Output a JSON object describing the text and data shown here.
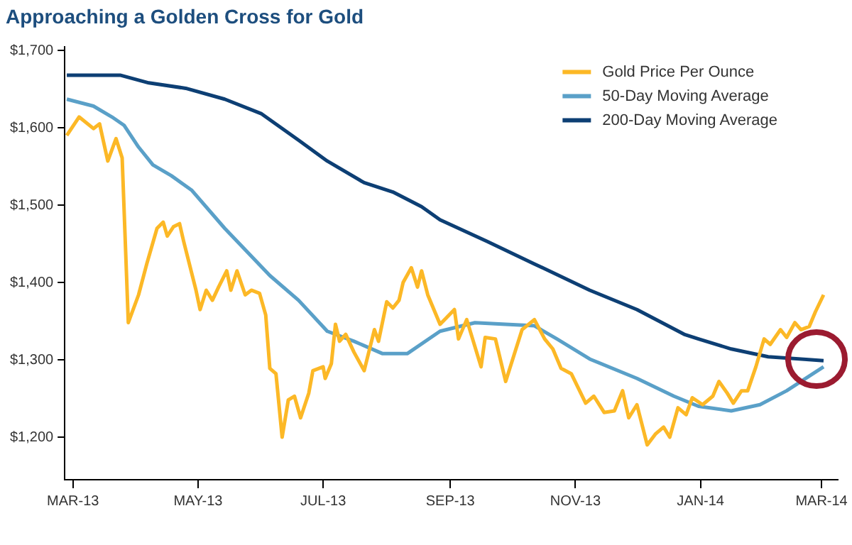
{
  "chart_data": {
    "type": "line",
    "title": "Approaching a Golden Cross for Gold",
    "xlim": [
      "2013-02-25",
      "2014-03-09"
    ],
    "xticks": [
      {
        "value": "2013-03-01",
        "label": "MAR-13"
      },
      {
        "value": "2013-05-01",
        "label": "MAY-13"
      },
      {
        "value": "2013-07-01",
        "label": "JUL-13"
      },
      {
        "value": "2013-09-01",
        "label": "SEP-13"
      },
      {
        "value": "2013-11-01",
        "label": "NOV-13"
      },
      {
        "value": "2014-01-01",
        "label": "JAN-14"
      },
      {
        "value": "2014-03-01",
        "label": "MAR-14"
      }
    ],
    "ylim": [
      1145,
      1705
    ],
    "yticks": [
      {
        "value": 1200,
        "label": "$1,200"
      },
      {
        "value": 1300,
        "label": "$1,300"
      },
      {
        "value": 1400,
        "label": "$1,400"
      },
      {
        "value": 1500,
        "label": "$1,500"
      },
      {
        "value": 1600,
        "label": "$1,600"
      },
      {
        "value": 1700,
        "label": "$1,700"
      }
    ],
    "legend": "top right",
    "series": [
      {
        "name": "Gold Price Per Ounce",
        "color": "#fcb826",
        "x": [
          "2013-02-26",
          "2013-03-04",
          "2013-03-11",
          "2013-03-14",
          "2013-03-18",
          "2013-03-22",
          "2013-03-25",
          "2013-03-28",
          "2013-04-02",
          "2013-04-06",
          "2013-04-11",
          "2013-04-14",
          "2013-04-16",
          "2013-04-19",
          "2013-04-22",
          "2013-04-24",
          "2013-04-26",
          "2013-04-30",
          "2013-05-02",
          "2013-05-05",
          "2013-05-08",
          "2013-05-11",
          "2013-05-15",
          "2013-05-17",
          "2013-05-20",
          "2013-05-24",
          "2013-05-27",
          "2013-05-31",
          "2013-06-03",
          "2013-06-05",
          "2013-06-08",
          "2013-06-11",
          "2013-06-14",
          "2013-06-17",
          "2013-06-20",
          "2013-06-24",
          "2013-06-26",
          "2013-07-01",
          "2013-07-02",
          "2013-07-05",
          "2013-07-07",
          "2013-07-09",
          "2013-07-12",
          "2013-07-16",
          "2013-07-21",
          "2013-07-26",
          "2013-07-28",
          "2013-08-01",
          "2013-08-04",
          "2013-08-07",
          "2013-08-09",
          "2013-08-13",
          "2013-08-16",
          "2013-08-18",
          "2013-08-21",
          "2013-08-27",
          "2013-09-03",
          "2013-09-05",
          "2013-09-09",
          "2013-09-16",
          "2013-09-18",
          "2013-09-23",
          "2013-09-28",
          "2013-10-03",
          "2013-10-06",
          "2013-10-12",
          "2013-10-17",
          "2013-10-21",
          "2013-10-25",
          "2013-10-30",
          "2013-11-06",
          "2013-11-10",
          "2013-11-15",
          "2013-11-20",
          "2013-11-24",
          "2013-11-27",
          "2013-12-01",
          "2013-12-06",
          "2013-12-10",
          "2013-12-14",
          "2013-12-17",
          "2013-12-21",
          "2013-12-25",
          "2013-12-28",
          "2014-01-02",
          "2014-01-07",
          "2014-01-10",
          "2014-01-14",
          "2014-01-17",
          "2014-01-21",
          "2014-01-24",
          "2014-01-28",
          "2014-02-01",
          "2014-02-04",
          "2014-02-09",
          "2014-02-12",
          "2014-02-16",
          "2014-02-19",
          "2014-02-23",
          "2014-02-26",
          "2014-03-02"
        ],
        "values": [
          1590,
          1614,
          1599,
          1605,
          1557,
          1586,
          1561,
          1348,
          1384,
          1424,
          1470,
          1478,
          1460,
          1472,
          1476,
          1453,
          1432,
          1390,
          1365,
          1390,
          1377,
          1394,
          1415,
          1390,
          1415,
          1384,
          1390,
          1386,
          1358,
          1289,
          1282,
          1200,
          1248,
          1253,
          1225,
          1257,
          1286,
          1291,
          1276,
          1295,
          1346,
          1324,
          1333,
          1310,
          1286,
          1339,
          1324,
          1375,
          1367,
          1377,
          1400,
          1419,
          1394,
          1415,
          1384,
          1346,
          1365,
          1327,
          1352,
          1291,
          1329,
          1327,
          1272,
          1314,
          1339,
          1352,
          1327,
          1314,
          1289,
          1282,
          1244,
          1253,
          1232,
          1234,
          1260,
          1225,
          1242,
          1190,
          1204,
          1213,
          1200,
          1238,
          1229,
          1251,
          1242,
          1253,
          1272,
          1257,
          1244,
          1260,
          1260,
          1291,
          1327,
          1320,
          1339,
          1329,
          1348,
          1339,
          1343,
          1362,
          1384
        ]
      },
      {
        "name": "50-Day Moving Average",
        "color": "#5aa0c8",
        "x": [
          "2013-02-26",
          "2013-03-11",
          "2013-03-20",
          "2013-03-26",
          "2013-04-02",
          "2013-04-09",
          "2013-04-18",
          "2013-04-28",
          "2013-05-14",
          "2013-06-05",
          "2013-06-19",
          "2013-07-03",
          "2013-07-16",
          "2013-07-30",
          "2013-08-11",
          "2013-08-27",
          "2013-09-13",
          "2013-09-28",
          "2013-10-12",
          "2013-10-23",
          "2013-11-08",
          "2013-12-01",
          "2013-12-19",
          "2013-12-31",
          "2014-01-16",
          "2014-01-30",
          "2014-02-12",
          "2014-03-02"
        ],
        "values": [
          1637,
          1628,
          1614,
          1603,
          1575,
          1552,
          1538,
          1519,
          1470,
          1409,
          1377,
          1337,
          1324,
          1308,
          1308,
          1337,
          1348,
          1346,
          1344,
          1327,
          1301,
          1276,
          1253,
          1240,
          1234,
          1242,
          1260,
          1291
        ]
      },
      {
        "name": "200-Day Moving Average",
        "color": "#0d3f74",
        "x": [
          "2013-02-26",
          "2013-03-24",
          "2013-04-07",
          "2013-04-25",
          "2013-05-14",
          "2013-06-01",
          "2013-06-19",
          "2013-07-03",
          "2013-07-21",
          "2013-08-04",
          "2013-08-18",
          "2013-08-27",
          "2013-09-19",
          "2013-10-12",
          "2013-11-08",
          "2013-12-01",
          "2013-12-24",
          "2013-12-31",
          "2014-01-16",
          "2014-02-03",
          "2014-03-02"
        ],
        "values": [
          1668,
          1668,
          1658,
          1651,
          1637,
          1618,
          1584,
          1557,
          1529,
          1517,
          1498,
          1481,
          1453,
          1424,
          1390,
          1365,
          1333,
          1327,
          1314,
          1304,
          1299
        ]
      }
    ]
  }
}
